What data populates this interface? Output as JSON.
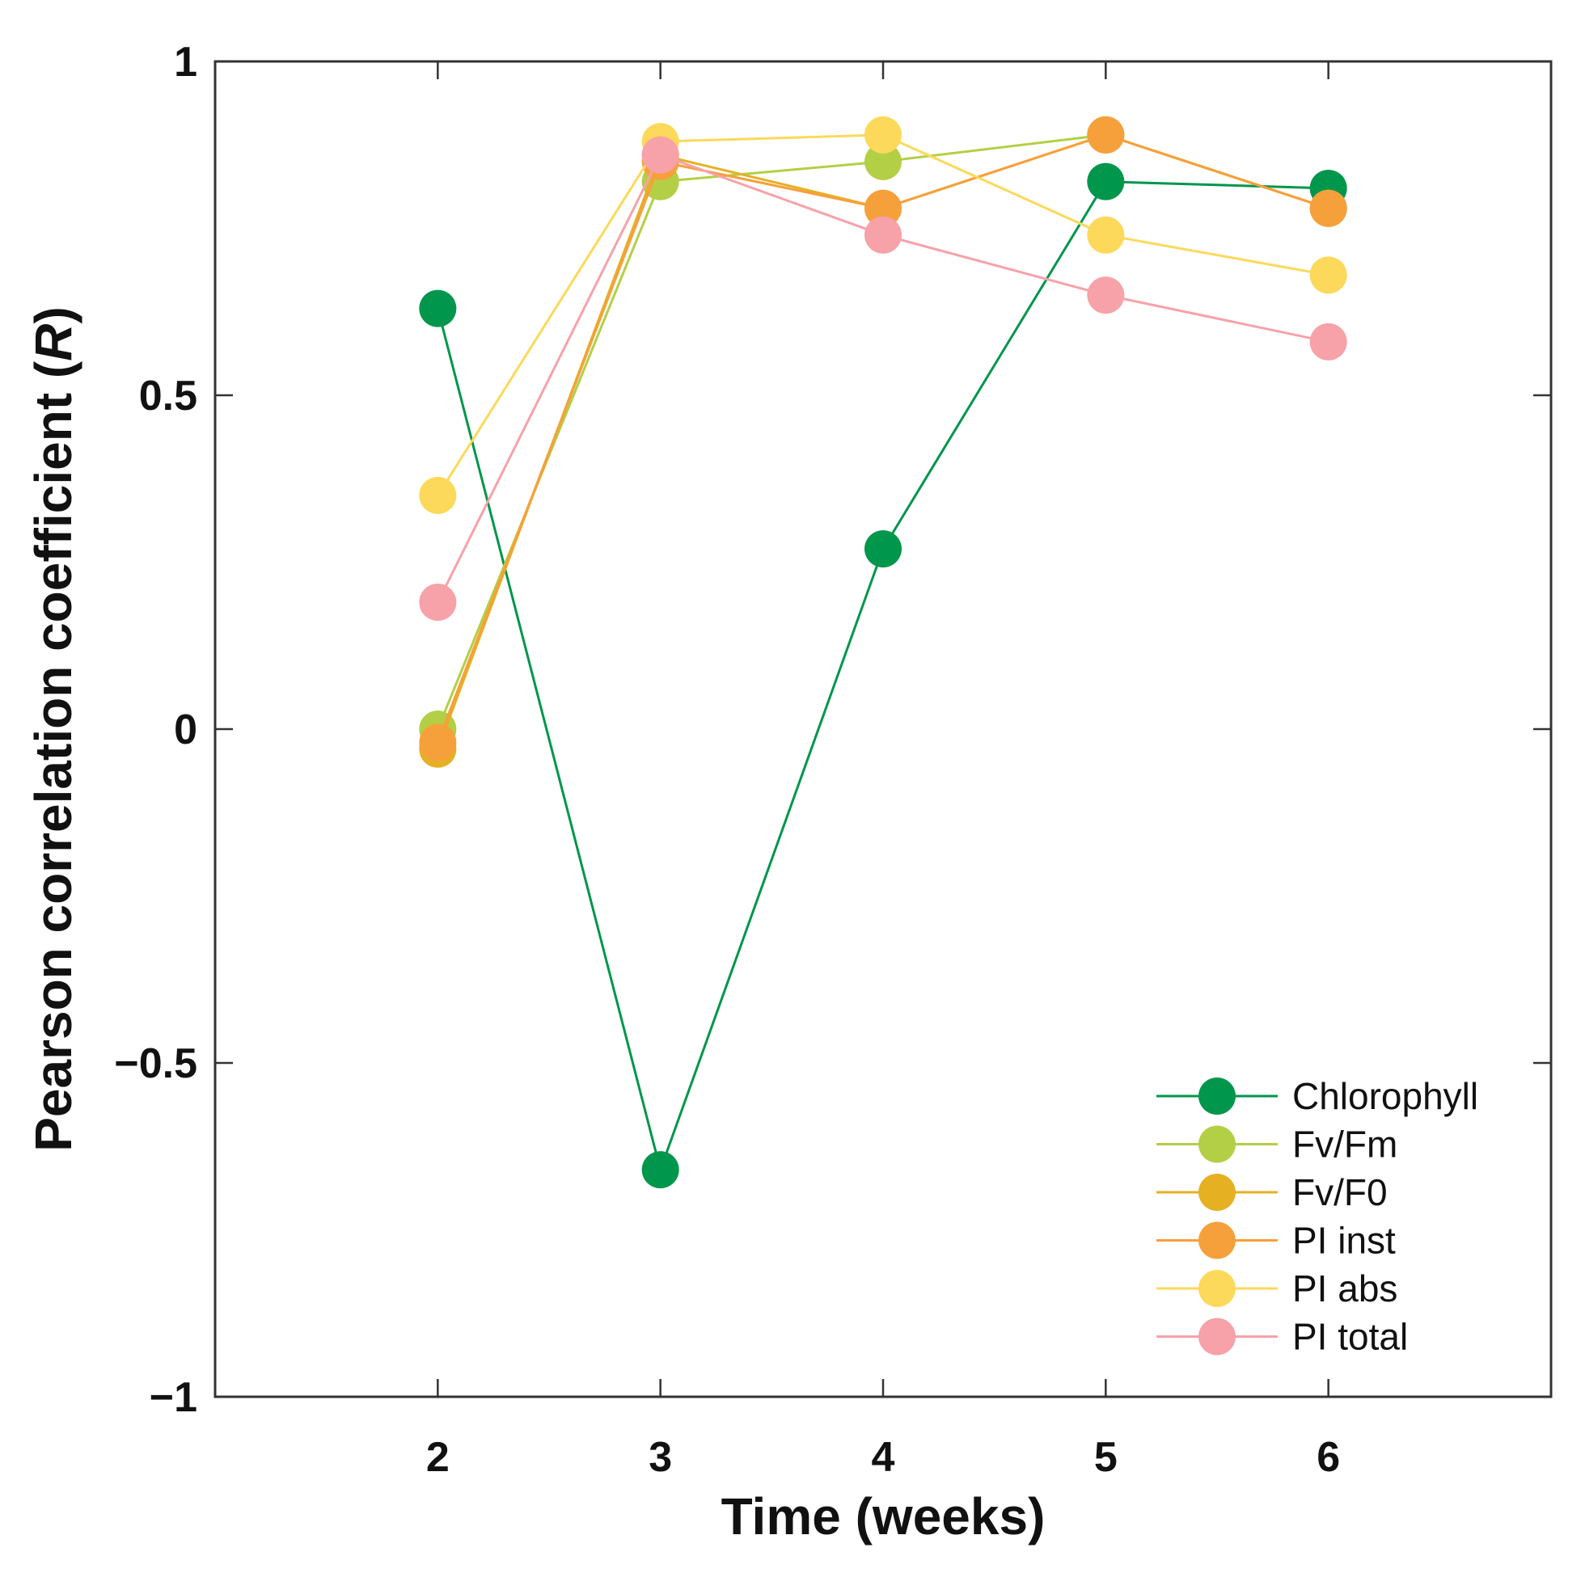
{
  "chart_data": {
    "type": "line",
    "title": "",
    "xlabel": "Time (weeks)",
    "ylabel_prefix": "Pearson correlation coefficient (",
    "ylabel_symbol": "R",
    "ylabel_suffix": ")",
    "x": [
      2,
      3,
      4,
      5,
      6
    ],
    "xlim": [
      1,
      7
    ],
    "ylim": [
      -1,
      1
    ],
    "x_tick_labels": [
      "2",
      "3",
      "4",
      "5",
      "6"
    ],
    "y_ticks": [
      -1,
      -0.5,
      0,
      0.5,
      1
    ],
    "y_tick_labels": [
      "−1",
      "−0.5",
      "0",
      "0.5",
      "1"
    ],
    "grid": false,
    "legend_position": "bottom-right",
    "series": [
      {
        "name": "Chlorophyll",
        "color": "#00964b",
        "values": [
          0.63,
          -0.66,
          0.27,
          0.82,
          0.81
        ]
      },
      {
        "name": "Fv/Fm",
        "color": "#b3cf45",
        "values": [
          0.0,
          0.82,
          0.85,
          0.89,
          0.78
        ]
      },
      {
        "name": "Fv/F0",
        "color": "#e6b023",
        "values": [
          -0.03,
          0.86,
          0.78,
          0.89,
          0.78
        ]
      },
      {
        "name": "PI inst",
        "color": "#f6a03c",
        "values": [
          -0.02,
          0.85,
          0.78,
          0.89,
          0.78
        ]
      },
      {
        "name": "PI abs",
        "color": "#fcd95a",
        "values": [
          0.35,
          0.88,
          0.89,
          0.74,
          0.68
        ]
      },
      {
        "name": "PI total",
        "color": "#f7a1a9",
        "values": [
          0.19,
          0.86,
          0.74,
          0.65,
          0.58
        ]
      }
    ]
  }
}
